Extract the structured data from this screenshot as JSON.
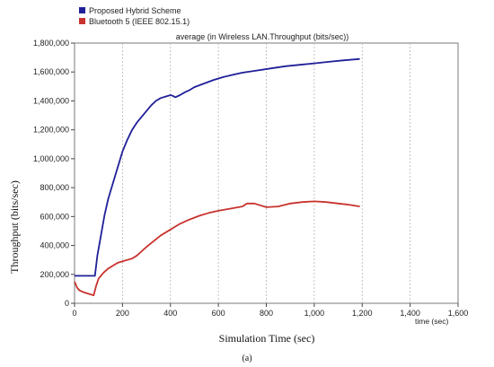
{
  "chart_data": {
    "type": "line",
    "title": "average (in Wireless LAN.Throughput (bits/sec))",
    "xlabel": "Simulation Time (sec)",
    "ylabel": "Throughput (bits/sec)",
    "x_unit_label": "time (sec)",
    "caption": "(a)",
    "xlim": [
      0,
      1600
    ],
    "ylim": [
      0,
      1800000
    ],
    "x_ticks": [
      0,
      200,
      400,
      600,
      800,
      1000,
      1200,
      1400,
      1600
    ],
    "x_tick_labels": [
      "0",
      "200",
      "400",
      "600",
      "800",
      "1,000",
      "1,200",
      "1,400",
      "1,600"
    ],
    "y_ticks": [
      0,
      200000,
      400000,
      600000,
      800000,
      1000000,
      1200000,
      1400000,
      1600000,
      1800000
    ],
    "y_tick_labels": [
      "0",
      "200,000",
      "400,000",
      "600,000",
      "800,000",
      "1,000,000",
      "1,200,000",
      "1,400,000",
      "1,600,000",
      "1,800,000"
    ],
    "grid": "vertical dashed",
    "legend_position": "top-left",
    "series": [
      {
        "name": "Proposed Hybrid Scheme",
        "color": "#1f1f99",
        "x": [
          0,
          30,
          60,
          85,
          95,
          110,
          125,
          140,
          160,
          180,
          200,
          220,
          240,
          260,
          280,
          300,
          320,
          340,
          360,
          380,
          400,
          410,
          420,
          440,
          460,
          480,
          500,
          540,
          580,
          620,
          660,
          700,
          760,
          820,
          880,
          940,
          1000,
          1060,
          1120,
          1190
        ],
        "y": [
          190000,
          190000,
          190000,
          190000,
          330000,
          470000,
          610000,
          720000,
          830000,
          940000,
          1050000,
          1130000,
          1200000,
          1250000,
          1290000,
          1330000,
          1370000,
          1400000,
          1420000,
          1430000,
          1440000,
          1435000,
          1425000,
          1440000,
          1460000,
          1475000,
          1495000,
          1520000,
          1545000,
          1565000,
          1580000,
          1595000,
          1610000,
          1625000,
          1640000,
          1650000,
          1660000,
          1670000,
          1680000,
          1690000
        ]
      },
      {
        "name": "Bluetooth 5 (IEEE 802.15.1)",
        "color": "#c8322d",
        "x": [
          0,
          10,
          20,
          40,
          60,
          80,
          90,
          100,
          120,
          140,
          160,
          180,
          200,
          220,
          240,
          260,
          280,
          300,
          330,
          360,
          400,
          440,
          480,
          520,
          560,
          600,
          650,
          700,
          720,
          750,
          800,
          850,
          900,
          950,
          1000,
          1050,
          1100,
          1150,
          1190
        ],
        "y": [
          150000,
          110000,
          90000,
          75000,
          65000,
          55000,
          120000,
          170000,
          210000,
          240000,
          260000,
          280000,
          290000,
          300000,
          310000,
          330000,
          360000,
          390000,
          430000,
          470000,
          510000,
          550000,
          580000,
          605000,
          625000,
          640000,
          655000,
          670000,
          690000,
          690000,
          665000,
          670000,
          690000,
          700000,
          705000,
          700000,
          690000,
          680000,
          670000
        ]
      }
    ]
  }
}
